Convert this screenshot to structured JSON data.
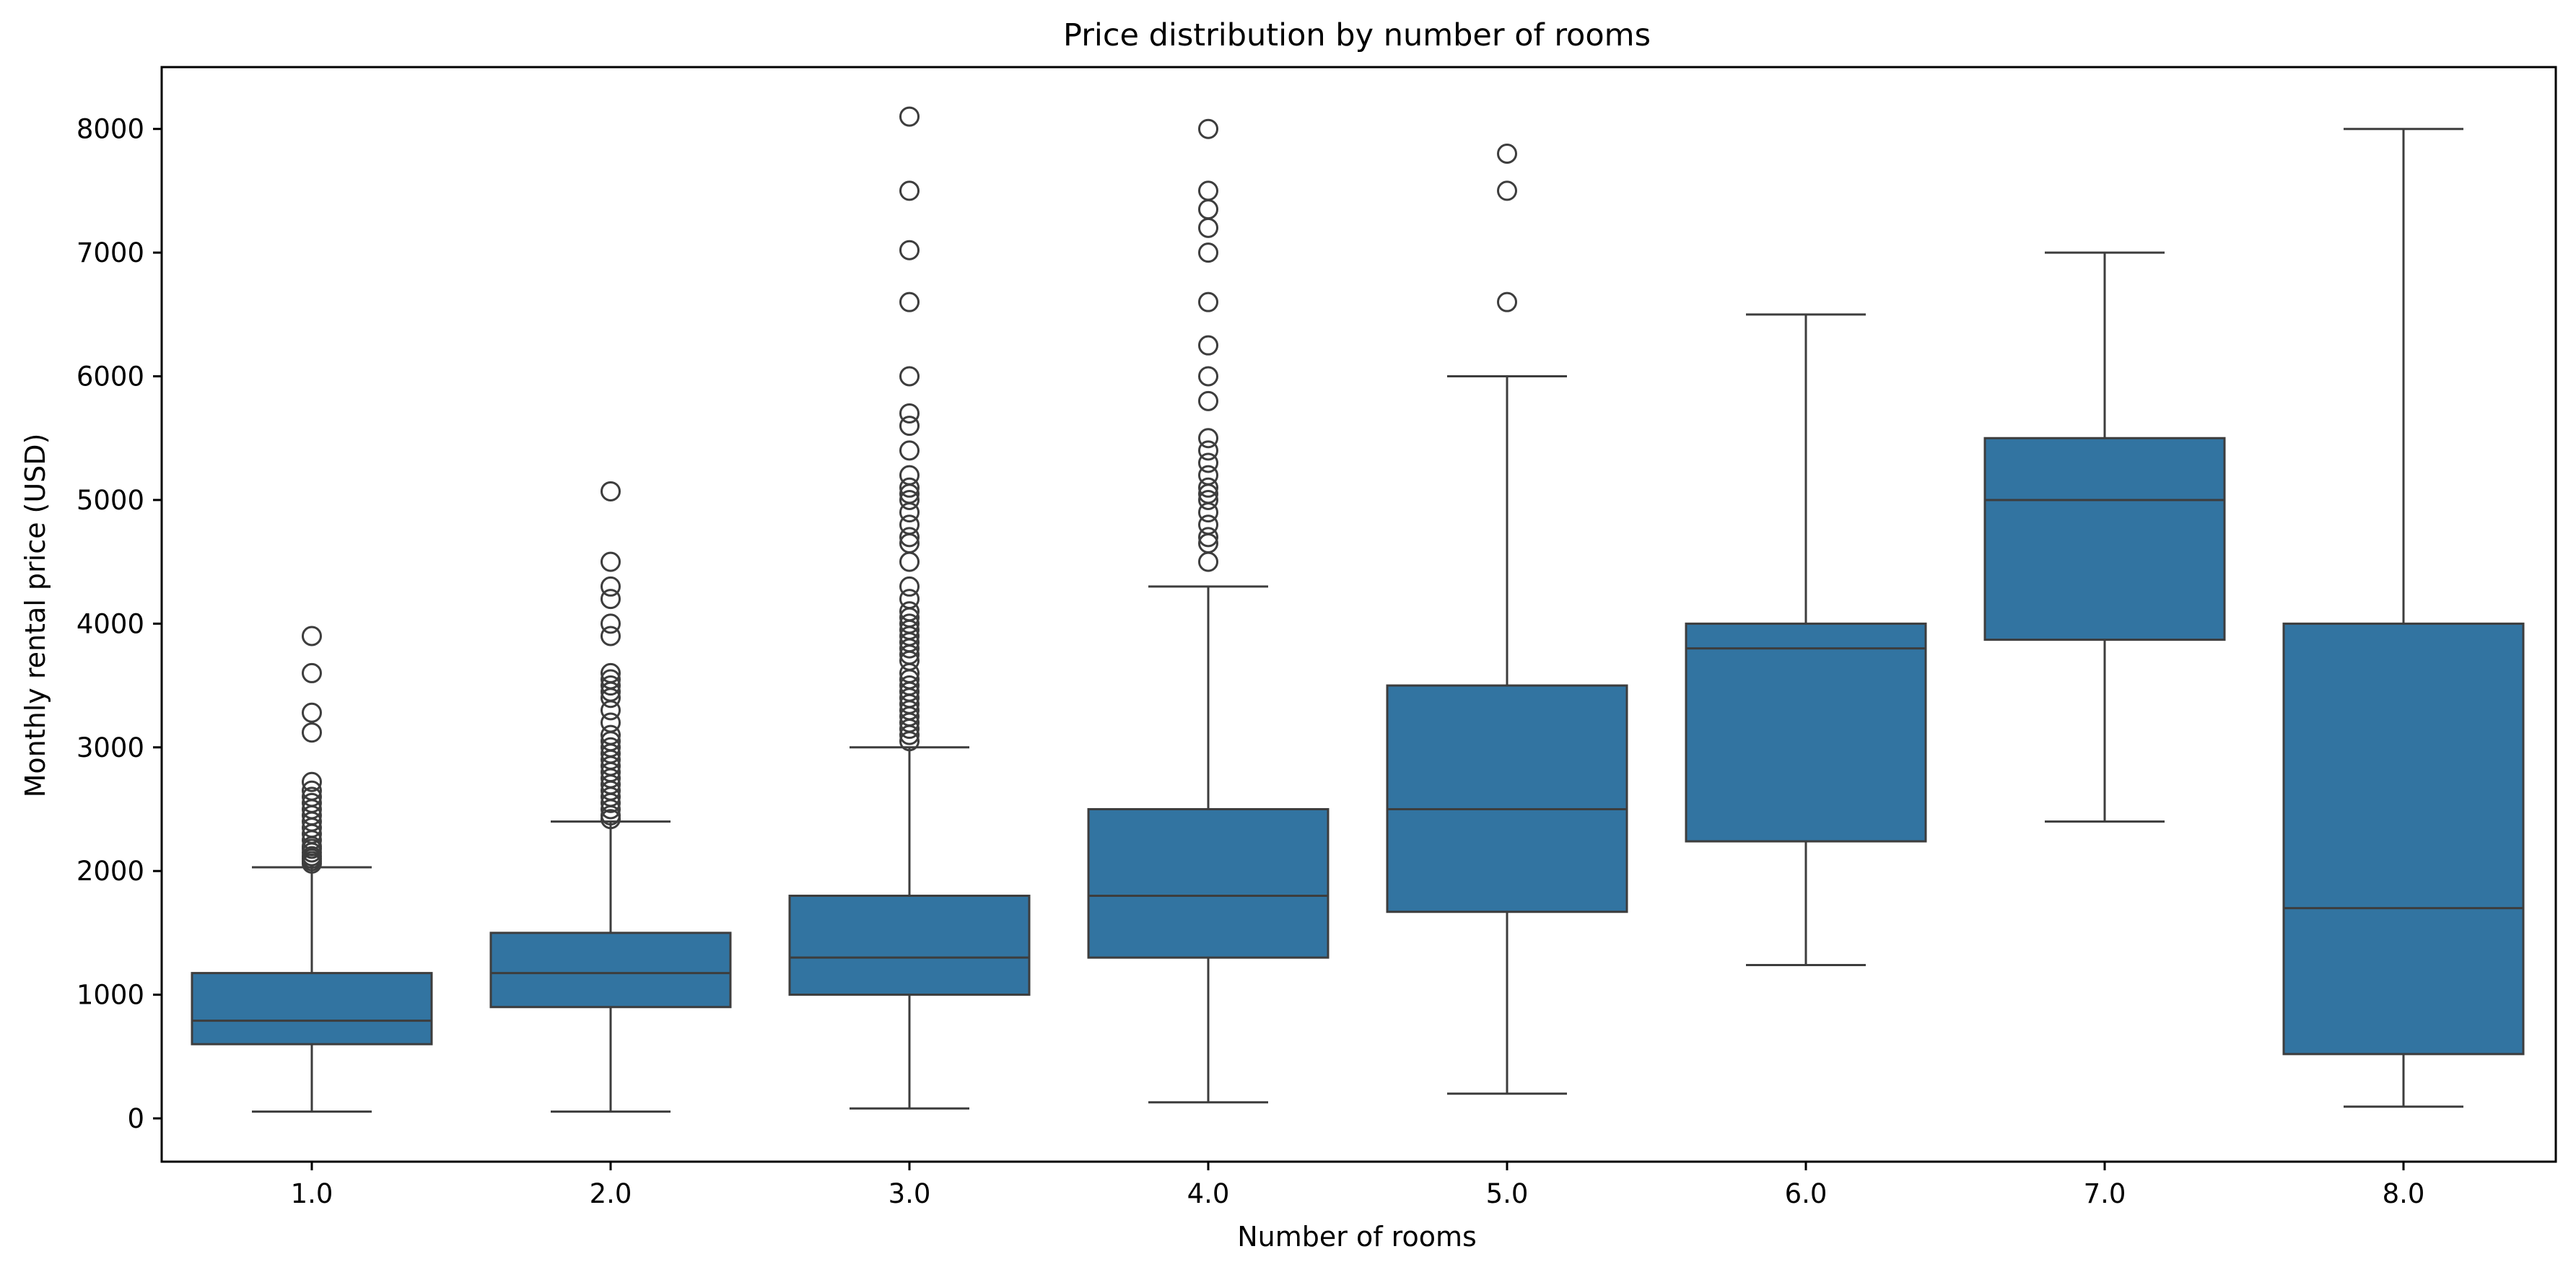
{
  "chart_data": {
    "type": "box",
    "title": "Price distribution by number of rooms",
    "xlabel": "Number of rooms",
    "ylabel": "Monthly rental price (USD)",
    "ylim": [
      -350,
      8500
    ],
    "yticks": [
      0,
      1000,
      2000,
      3000,
      4000,
      5000,
      6000,
      7000,
      8000
    ],
    "grid": false,
    "legend": "none",
    "categories": [
      "1.0",
      "2.0",
      "3.0",
      "4.0",
      "5.0",
      "6.0",
      "7.0",
      "8.0"
    ],
    "boxes": [
      {
        "category": "1.0",
        "whisker_low": 55,
        "q1": 600,
        "median": 790,
        "q3": 1175,
        "whisker_high": 2030,
        "outliers": [
          2060,
          2080,
          2100,
          2120,
          2150,
          2180,
          2200,
          2250,
          2300,
          2350,
          2400,
          2450,
          2500,
          2550,
          2600,
          2650,
          2720,
          3120,
          3280,
          3600,
          3900
        ]
      },
      {
        "category": "2.0",
        "whisker_low": 55,
        "q1": 900,
        "median": 1175,
        "q3": 1500,
        "whisker_high": 2400,
        "outliers": [
          2420,
          2450,
          2500,
          2550,
          2600,
          2650,
          2700,
          2750,
          2800,
          2850,
          2900,
          2950,
          3000,
          3050,
          3100,
          3200,
          3300,
          3400,
          3450,
          3500,
          3550,
          3600,
          3900,
          4000,
          4200,
          4300,
          4500,
          5070
        ]
      },
      {
        "category": "3.0",
        "whisker_low": 80,
        "q1": 1000,
        "median": 1300,
        "q3": 1800,
        "whisker_high": 3000,
        "outliers": [
          3050,
          3100,
          3150,
          3200,
          3250,
          3300,
          3350,
          3400,
          3450,
          3500,
          3550,
          3600,
          3700,
          3750,
          3800,
          3850,
          3900,
          3950,
          4000,
          4050,
          4100,
          4200,
          4300,
          4500,
          4650,
          4700,
          4800,
          4900,
          5000,
          5050,
          5100,
          5200,
          5400,
          5600,
          5700,
          6000,
          6600,
          7020,
          7500,
          8100
        ]
      },
      {
        "category": "4.0",
        "whisker_low": 130,
        "q1": 1300,
        "median": 1800,
        "q3": 2500,
        "whisker_high": 4300,
        "outliers": [
          4500,
          4650,
          4700,
          4800,
          4900,
          5000,
          5050,
          5100,
          5200,
          5300,
          5400,
          5500,
          5800,
          6000,
          6250,
          6600,
          7000,
          7200,
          7350,
          7500,
          8000
        ]
      },
      {
        "category": "5.0",
        "whisker_low": 200,
        "q1": 1670,
        "median": 2500,
        "q3": 3500,
        "whisker_high": 6000,
        "outliers": [
          6600,
          7500,
          7800
        ]
      },
      {
        "category": "6.0",
        "whisker_low": 1240,
        "q1": 2240,
        "median": 3800,
        "q3": 4000,
        "whisker_high": 6500,
        "outliers": []
      },
      {
        "category": "7.0",
        "whisker_low": 2400,
        "q1": 3870,
        "median": 5000,
        "q3": 5500,
        "whisker_high": 7000,
        "outliers": []
      },
      {
        "category": "8.0",
        "whisker_low": 95,
        "q1": 520,
        "median": 1700,
        "q3": 4000,
        "whisker_high": 8000,
        "outliers": []
      }
    ],
    "colors": {
      "box_fill": "#3274a1",
      "line": "#3d3d3d",
      "axes": "#000000"
    }
  }
}
